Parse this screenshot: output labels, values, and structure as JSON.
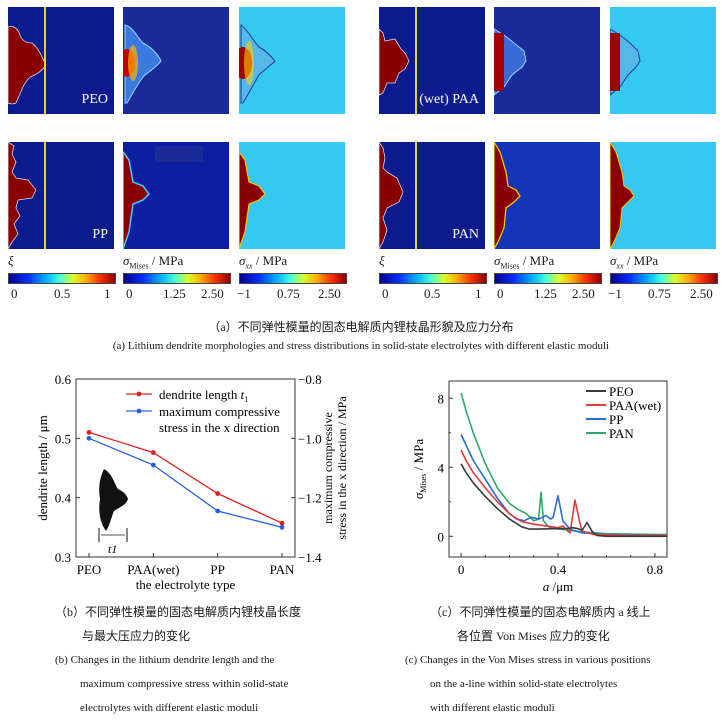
{
  "figure_a": {
    "labels": {
      "peo": "PEO",
      "pp": "PP",
      "paa": "(wet) PAA",
      "pan": "PAN"
    },
    "colorbars": [
      {
        "title": "ξ",
        "ticks": [
          "0",
          "0.5",
          "1"
        ]
      },
      {
        "title_main": "σ",
        "title_sub": "Mises",
        "title_unit": " / MPa",
        "ticks": [
          "0",
          "1.25",
          "2.50"
        ]
      },
      {
        "title_main": "σ",
        "title_sub": "xx",
        "title_unit": " / MPa",
        "ticks": [
          "−1",
          "0.75",
          "2.50"
        ]
      }
    ],
    "caption_cn": "（a）不同弹性模量的固态电解质内锂枝晶形貌及应力分布",
    "caption_en": "(a) Lithium dendrite morphologies and stress distributions in solid-state electrolytes with different elastic moduli"
  },
  "chart_data": [
    {
      "type": "line",
      "title": "",
      "xlabel": "the electrolyte type",
      "ylabel": "dendrite length / μm",
      "y2label_line1": "maximum compressive",
      "y2label_line2": "stress in the x direction / MPa",
      "categories": [
        "PEO",
        "PAA(wet)",
        "PP",
        "PAN"
      ],
      "ylim": [
        0.3,
        0.6
      ],
      "yticks": [
        "0.3",
        "0.4",
        "0.5",
        "0.6"
      ],
      "y2lim": [
        -1.4,
        -0.8
      ],
      "y2ticks": [
        "−1.4",
        "−1.2",
        "−1.0",
        "−0.8"
      ],
      "legend_position": "top-right",
      "series": [
        {
          "name": "dendrite length t1",
          "legend_label": "dendrite length ",
          "legend_italic": "t",
          "legend_sub": "1",
          "axis": "left",
          "color": "#e02020",
          "values": [
            0.51,
            0.476,
            0.407,
            0.357
          ]
        },
        {
          "name": "maximum compressive stress in the x direction",
          "legend_label_line1": "maximum compressive",
          "legend_label_line2": "stress in the x direction",
          "axis": "right",
          "color": "#2a5ee0",
          "values": [
            -1.0,
            -1.09,
            -1.245,
            -1.3
          ]
        }
      ],
      "inset_label": "t1"
    },
    {
      "type": "line",
      "title": "",
      "xlabel": "a /μm",
      "ylabel": "σMises / MPa",
      "xlim": [
        -0.05,
        0.85
      ],
      "ylim": [
        -1.2,
        9.0
      ],
      "xticks": [
        "0",
        "0.4",
        "0.8"
      ],
      "yticks": [
        "0",
        "4",
        "8"
      ],
      "legend_position": "top-right",
      "series": [
        {
          "name": "PEO",
          "color": "#3a3a3a",
          "x": [
            0,
            0.02,
            0.05,
            0.1,
            0.15,
            0.2,
            0.25,
            0.28,
            0.32,
            0.4,
            0.44,
            0.46,
            0.48,
            0.5,
            0.52,
            0.54,
            0.56,
            0.6,
            0.7,
            0.85
          ],
          "y": [
            4.2,
            3.7,
            3.1,
            2.3,
            1.6,
            1.0,
            0.55,
            0.42,
            0.42,
            0.45,
            0.45,
            0.5,
            0.45,
            0.35,
            0.8,
            0.3,
            0.05,
            0.0,
            0.0,
            0.0
          ]
        },
        {
          "name": "PAA(wet)",
          "color": "#e23a3a",
          "x": [
            0,
            0.02,
            0.05,
            0.1,
            0.15,
            0.2,
            0.25,
            0.3,
            0.35,
            0.4,
            0.42,
            0.44,
            0.45,
            0.47,
            0.49,
            0.5,
            0.55,
            0.7,
            0.85
          ],
          "y": [
            5.0,
            4.4,
            3.7,
            2.8,
            2.0,
            1.3,
            0.85,
            0.7,
            0.6,
            0.5,
            0.6,
            0.3,
            0.2,
            2.1,
            0.8,
            0.3,
            0.1,
            0.05,
            0.05
          ]
        },
        {
          "name": "PP",
          "color": "#2a6ad8",
          "x": [
            0,
            0.02,
            0.05,
            0.1,
            0.15,
            0.2,
            0.23,
            0.26,
            0.29,
            0.32,
            0.35,
            0.37,
            0.38,
            0.4,
            0.42,
            0.45,
            0.5,
            0.6,
            0.85
          ],
          "y": [
            5.9,
            5.3,
            4.4,
            3.3,
            2.2,
            1.3,
            1.0,
            0.9,
            1.1,
            1.0,
            1.2,
            1.0,
            1.1,
            2.35,
            0.9,
            0.4,
            0.2,
            0.1,
            0.05
          ]
        },
        {
          "name": "PAN",
          "color": "#2ea86a",
          "x": [
            0,
            0.02,
            0.05,
            0.1,
            0.15,
            0.2,
            0.23,
            0.27,
            0.3,
            0.32,
            0.33,
            0.34,
            0.36,
            0.38,
            0.42,
            0.5,
            0.6,
            0.85
          ],
          "y": [
            8.3,
            7.3,
            6.0,
            4.2,
            2.8,
            1.9,
            1.6,
            1.3,
            0.9,
            1.0,
            2.55,
            0.9,
            0.55,
            0.45,
            0.4,
            0.25,
            0.15,
            0.1
          ]
        }
      ]
    }
  ],
  "figure_b": {
    "caption_cn_line1": "（b）不同弹性模量的固态电解质内锂枝晶长度",
    "caption_cn_line2": "与最大压应力的变化",
    "caption_en_line1": "(b) Changes in the lithium dendrite length and the",
    "caption_en_line2": "maximum compressive stress within solid-state",
    "caption_en_line3": "electrolytes with different elastic moduli"
  },
  "figure_c": {
    "caption_cn_line1": "（c）不同弹性模量的固态电解质内 a 线上",
    "caption_cn_line2": "各位置 Von Mises 应力的变化",
    "caption_en_line1": "(c) Changes in the Von Mises stress in various positions",
    "caption_en_line2": "on the a-line within solid-state electrolytes",
    "caption_en_line3": "with different elastic moduli"
  }
}
